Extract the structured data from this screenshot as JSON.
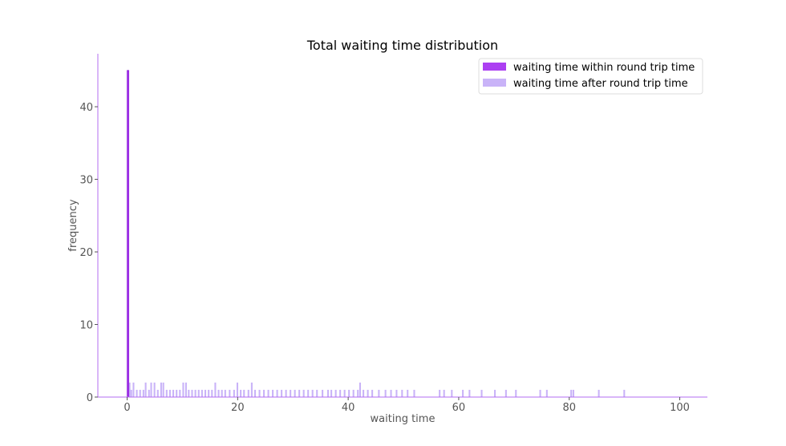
{
  "chart_data": {
    "type": "bar",
    "title": "Total waiting time distribution",
    "xlabel": "waiting time",
    "ylabel": "frequency",
    "xlim": [
      -5.3,
      105
    ],
    "ylim": [
      0,
      47.3
    ],
    "xticks": [
      0,
      20,
      40,
      60,
      80,
      100
    ],
    "yticks": [
      0,
      10,
      20,
      30,
      40
    ],
    "grid": false,
    "legend_position": "top-right",
    "bin_width": 0.3,
    "series": [
      {
        "name": "waiting time within round trip time",
        "color": "#ac3ff2",
        "bins": [
          {
            "x": 0.0,
            "count": 45
          }
        ]
      },
      {
        "name": "waiting time after round trip time",
        "color": "#c9b3f8",
        "bins": [
          {
            "x": 0.3,
            "count": 2
          },
          {
            "x": 0.6,
            "count": 1
          },
          {
            "x": 1.0,
            "count": 2
          },
          {
            "x": 1.6,
            "count": 1
          },
          {
            "x": 2.2,
            "count": 1
          },
          {
            "x": 2.8,
            "count": 1
          },
          {
            "x": 3.2,
            "count": 2
          },
          {
            "x": 3.8,
            "count": 1
          },
          {
            "x": 4.2,
            "count": 2
          },
          {
            "x": 4.8,
            "count": 2
          },
          {
            "x": 5.4,
            "count": 1
          },
          {
            "x": 6.0,
            "count": 2
          },
          {
            "x": 6.4,
            "count": 2
          },
          {
            "x": 7.0,
            "count": 1
          },
          {
            "x": 7.6,
            "count": 1
          },
          {
            "x": 8.2,
            "count": 1
          },
          {
            "x": 8.8,
            "count": 1
          },
          {
            "x": 9.4,
            "count": 1
          },
          {
            "x": 10.0,
            "count": 2
          },
          {
            "x": 10.5,
            "count": 2
          },
          {
            "x": 11.0,
            "count": 1
          },
          {
            "x": 11.6,
            "count": 1
          },
          {
            "x": 12.2,
            "count": 1
          },
          {
            "x": 12.8,
            "count": 1
          },
          {
            "x": 13.4,
            "count": 1
          },
          {
            "x": 14.0,
            "count": 1
          },
          {
            "x": 14.6,
            "count": 1
          },
          {
            "x": 15.2,
            "count": 1
          },
          {
            "x": 15.8,
            "count": 2
          },
          {
            "x": 16.4,
            "count": 1
          },
          {
            "x": 17.0,
            "count": 1
          },
          {
            "x": 17.6,
            "count": 1
          },
          {
            "x": 18.4,
            "count": 1
          },
          {
            "x": 19.2,
            "count": 1
          },
          {
            "x": 19.8,
            "count": 2
          },
          {
            "x": 20.4,
            "count": 1
          },
          {
            "x": 21.0,
            "count": 1
          },
          {
            "x": 21.8,
            "count": 1
          },
          {
            "x": 22.4,
            "count": 2
          },
          {
            "x": 23.0,
            "count": 1
          },
          {
            "x": 23.8,
            "count": 1
          },
          {
            "x": 24.6,
            "count": 1
          },
          {
            "x": 25.4,
            "count": 1
          },
          {
            "x": 26.2,
            "count": 1
          },
          {
            "x": 27.0,
            "count": 1
          },
          {
            "x": 27.8,
            "count": 1
          },
          {
            "x": 28.6,
            "count": 1
          },
          {
            "x": 29.4,
            "count": 1
          },
          {
            "x": 30.2,
            "count": 1
          },
          {
            "x": 31.0,
            "count": 1
          },
          {
            "x": 31.8,
            "count": 1
          },
          {
            "x": 32.6,
            "count": 1
          },
          {
            "x": 33.4,
            "count": 1
          },
          {
            "x": 34.2,
            "count": 1
          },
          {
            "x": 35.2,
            "count": 1
          },
          {
            "x": 36.2,
            "count": 1
          },
          {
            "x": 36.8,
            "count": 1
          },
          {
            "x": 37.6,
            "count": 1
          },
          {
            "x": 38.4,
            "count": 1
          },
          {
            "x": 39.2,
            "count": 1
          },
          {
            "x": 40.0,
            "count": 1
          },
          {
            "x": 40.8,
            "count": 1
          },
          {
            "x": 41.6,
            "count": 1
          },
          {
            "x": 42.0,
            "count": 2
          },
          {
            "x": 42.6,
            "count": 1
          },
          {
            "x": 43.4,
            "count": 1
          },
          {
            "x": 44.2,
            "count": 1
          },
          {
            "x": 45.4,
            "count": 1
          },
          {
            "x": 46.6,
            "count": 1
          },
          {
            "x": 47.6,
            "count": 1
          },
          {
            "x": 48.6,
            "count": 1
          },
          {
            "x": 49.6,
            "count": 1
          },
          {
            "x": 50.6,
            "count": 1
          },
          {
            "x": 51.8,
            "count": 1
          },
          {
            "x": 56.4,
            "count": 1
          },
          {
            "x": 57.2,
            "count": 1
          },
          {
            "x": 58.6,
            "count": 1
          },
          {
            "x": 60.6,
            "count": 1
          },
          {
            "x": 61.8,
            "count": 1
          },
          {
            "x": 64.0,
            "count": 1
          },
          {
            "x": 66.4,
            "count": 1
          },
          {
            "x": 68.4,
            "count": 1
          },
          {
            "x": 70.2,
            "count": 1
          },
          {
            "x": 74.6,
            "count": 1
          },
          {
            "x": 75.8,
            "count": 1
          },
          {
            "x": 80.2,
            "count": 1
          },
          {
            "x": 80.6,
            "count": 1
          },
          {
            "x": 85.2,
            "count": 1
          },
          {
            "x": 89.8,
            "count": 1
          }
        ]
      }
    ]
  }
}
